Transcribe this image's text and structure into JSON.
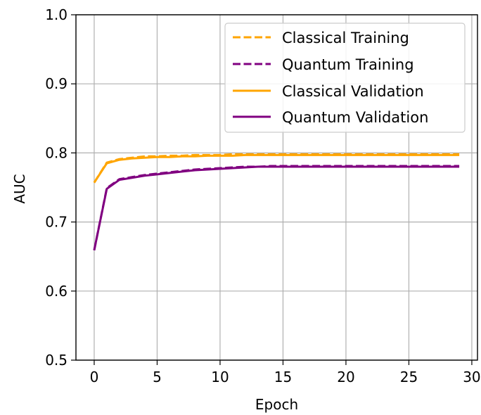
{
  "chart_data": {
    "type": "line",
    "title": "",
    "xlabel": "Epoch",
    "ylabel": "AUC",
    "xlim": [
      -1.45,
      30.45
    ],
    "ylim": [
      0.5,
      1.0
    ],
    "xticks": [
      0,
      5,
      10,
      15,
      20,
      25,
      30
    ],
    "yticks": [
      0.5,
      0.6,
      0.7,
      0.8,
      0.9,
      1.0
    ],
    "xtick_labels": [
      "0",
      "5",
      "10",
      "15",
      "20",
      "25",
      "30"
    ],
    "ytick_labels": [
      "0.5",
      "0.6",
      "0.7",
      "0.8",
      "0.9",
      "1.0"
    ],
    "grid": true,
    "legend_position": "top-right",
    "x": [
      0,
      1,
      2,
      3,
      4,
      5,
      6,
      7,
      8,
      9,
      10,
      11,
      12,
      13,
      14,
      15,
      16,
      17,
      18,
      19,
      20,
      21,
      22,
      23,
      24,
      25,
      26,
      27,
      28,
      29
    ],
    "series": [
      {
        "name": "Classical Training",
        "style": "dashed",
        "color": "#FFA500",
        "values": [
          0.757,
          0.786,
          0.791,
          0.793,
          0.795,
          0.795,
          0.796,
          0.796,
          0.797,
          0.797,
          0.797,
          0.798,
          0.798,
          0.798,
          0.798,
          0.798,
          0.798,
          0.798,
          0.798,
          0.798,
          0.798,
          0.798,
          0.798,
          0.798,
          0.798,
          0.798,
          0.798,
          0.798,
          0.798,
          0.798
        ]
      },
      {
        "name": "Quantum Training",
        "style": "dashed",
        "color": "#800080",
        "values": [
          0.659,
          0.749,
          0.762,
          0.765,
          0.768,
          0.77,
          0.772,
          0.774,
          0.776,
          0.777,
          0.778,
          0.779,
          0.78,
          0.78,
          0.781,
          0.781,
          0.781,
          0.781,
          0.781,
          0.781,
          0.781,
          0.781,
          0.781,
          0.781,
          0.781,
          0.781,
          0.781,
          0.781,
          0.781,
          0.781
        ]
      },
      {
        "name": "Classical Validation",
        "style": "solid",
        "color": "#FFA500",
        "values": [
          0.757,
          0.785,
          0.79,
          0.792,
          0.793,
          0.794,
          0.794,
          0.795,
          0.795,
          0.796,
          0.796,
          0.796,
          0.797,
          0.797,
          0.797,
          0.797,
          0.797,
          0.797,
          0.797,
          0.797,
          0.797,
          0.797,
          0.797,
          0.797,
          0.797,
          0.797,
          0.797,
          0.797,
          0.797,
          0.797
        ]
      },
      {
        "name": "Quantum Validation",
        "style": "solid",
        "color": "#800080",
        "values": [
          0.659,
          0.748,
          0.761,
          0.764,
          0.767,
          0.769,
          0.771,
          0.773,
          0.775,
          0.776,
          0.777,
          0.778,
          0.779,
          0.78,
          0.78,
          0.78,
          0.78,
          0.78,
          0.78,
          0.78,
          0.78,
          0.78,
          0.78,
          0.78,
          0.78,
          0.78,
          0.78,
          0.78,
          0.78,
          0.78
        ]
      }
    ]
  }
}
